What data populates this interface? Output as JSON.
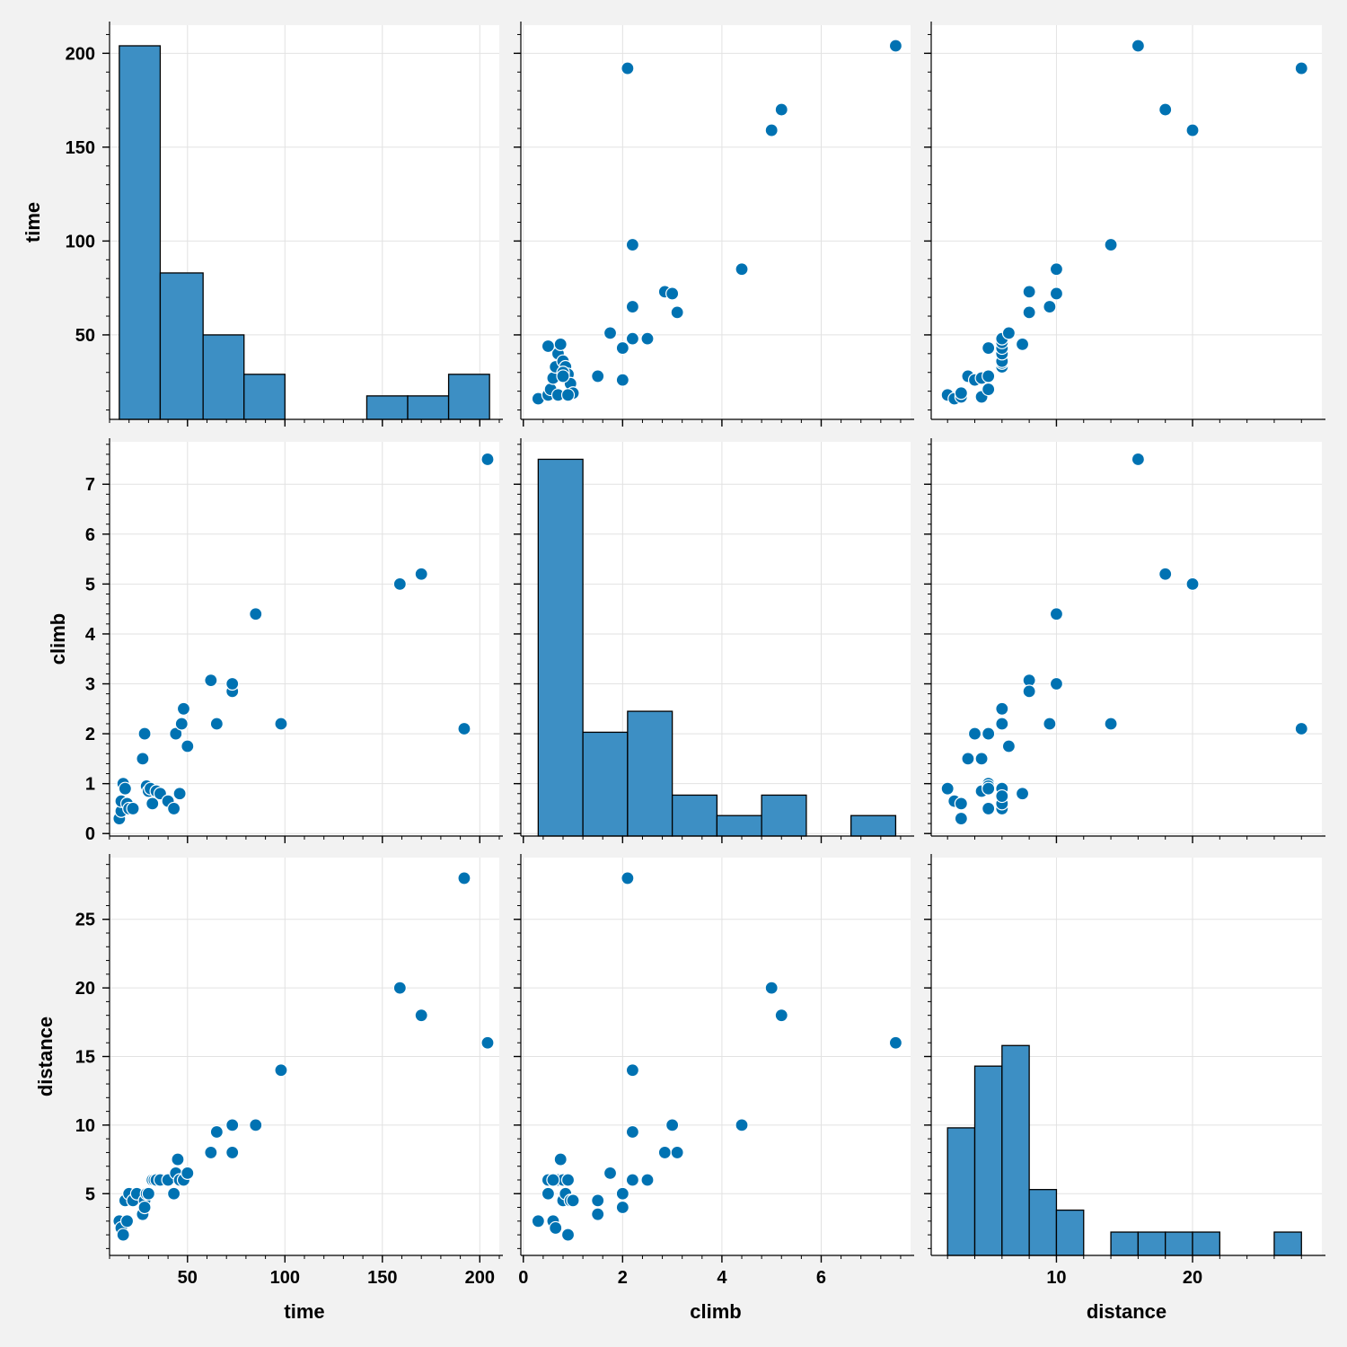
{
  "figure": {
    "type": "pairplot",
    "variables": [
      "time",
      "climb",
      "distance"
    ]
  },
  "colors": {
    "background": "#f2f2f2",
    "panel": "#ffffff",
    "grid": "#e2e2e2",
    "series": "#0072b2",
    "bar_fill": "#3d8fc4"
  },
  "chart_data": [
    {
      "type": "histogram",
      "row": "time",
      "col": "time",
      "xlabel": "",
      "ylabel": "time",
      "bins": [
        [
          15,
          36,
          204
        ],
        [
          36,
          58,
          83
        ],
        [
          58,
          79,
          50
        ],
        [
          79,
          100,
          29
        ],
        [
          100,
          121,
          0
        ],
        [
          121,
          142,
          0
        ],
        [
          142,
          163,
          17.5
        ],
        [
          163,
          184,
          17.5
        ],
        [
          184,
          205,
          29
        ]
      ],
      "xticks": [
        50,
        100,
        150,
        200
      ],
      "xlim": [
        10,
        210
      ],
      "yticks": [
        50,
        100,
        150,
        200
      ],
      "ytick_labels": [
        "50",
        "100",
        "150",
        "200"
      ],
      "ylim": [
        5,
        215
      ]
    },
    {
      "type": "scatter",
      "row": "time",
      "col": "climb",
      "xlabel": "",
      "ylabel": "",
      "x": [
        0.3,
        0.5,
        0.55,
        0.6,
        0.65,
        0.7,
        0.75,
        0.8,
        0.85,
        0.9,
        0.95,
        1.0,
        0.7,
        0.8,
        0.8,
        0.5,
        0.9,
        1.5,
        1.5,
        1.75,
        2.0,
        2.0,
        2.2,
        2.2,
        2.5,
        2.85,
        3.0,
        3.1,
        4.4,
        2.2,
        2.1,
        5.0,
        5.2,
        7.5
      ],
      "y": [
        16,
        18,
        21,
        27,
        33,
        40,
        45,
        36,
        33,
        29,
        24,
        19,
        18,
        30,
        28,
        44,
        18,
        28,
        28,
        51,
        43,
        26,
        48,
        65,
        48,
        73,
        72,
        62,
        85,
        98,
        192,
        159,
        170,
        204
      ],
      "xticks": [
        0,
        2,
        4,
        6
      ],
      "xlim": [
        -0.05,
        7.8
      ],
      "yticks": [
        50,
        100,
        150,
        200
      ],
      "ylim": [
        5,
        215
      ]
    },
    {
      "type": "scatter",
      "row": "time",
      "col": "distance",
      "xlabel": "",
      "ylabel": "",
      "x": [
        2,
        2.5,
        3,
        3,
        3.5,
        4,
        4.5,
        4.5,
        5,
        5,
        5,
        6,
        6,
        6,
        6,
        6,
        6,
        6,
        6.5,
        7.5,
        8,
        8,
        9.5,
        10,
        10,
        14,
        16,
        18,
        20,
        28
      ],
      "y": [
        18,
        16,
        17,
        19,
        28,
        26,
        27,
        17,
        28,
        21,
        43,
        33,
        35,
        36,
        40,
        43,
        46,
        48,
        51,
        45,
        62,
        73,
        65,
        72,
        85,
        98,
        204,
        170,
        159,
        192
      ],
      "xticks": [
        10,
        20
      ],
      "xlim": [
        0.8,
        29.5
      ],
      "yticks": [
        50,
        100,
        150,
        200
      ],
      "ylim": [
        5,
        215
      ]
    },
    {
      "type": "scatter",
      "row": "climb",
      "col": "time",
      "xlabel": "",
      "ylabel": "climb",
      "x": [
        15,
        16,
        16,
        17,
        18,
        19,
        20,
        22,
        27,
        28,
        29,
        30,
        31,
        32,
        34,
        36,
        40,
        43,
        44,
        46,
        47,
        48,
        50,
        62,
        65,
        73,
        73,
        85,
        98,
        159,
        170,
        192,
        204
      ],
      "y": [
        0.3,
        0.45,
        0.65,
        1.0,
        0.9,
        0.6,
        0.5,
        0.5,
        1.5,
        2.0,
        0.95,
        0.85,
        0.9,
        0.6,
        0.85,
        0.8,
        0.65,
        0.5,
        2.0,
        0.8,
        2.2,
        2.5,
        1.75,
        3.07,
        2.2,
        2.85,
        3.0,
        4.4,
        2.2,
        5.0,
        5.2,
        2.1,
        7.5
      ],
      "xticks": [
        50,
        100,
        150,
        200
      ],
      "xlim": [
        10,
        210
      ],
      "yticks": [
        0,
        1,
        2,
        3,
        4,
        5,
        6,
        7
      ],
      "ytick_labels": [
        "0",
        "1",
        "2",
        "3",
        "4",
        "5",
        "6",
        "7"
      ],
      "ylim": [
        -0.05,
        7.85
      ]
    },
    {
      "type": "histogram",
      "row": "climb",
      "col": "climb",
      "xlabel": "",
      "ylabel": "",
      "bins": [
        [
          0.3,
          1.2,
          7.5
        ],
        [
          1.2,
          2.1,
          2.03
        ],
        [
          2.1,
          3.0,
          2.45
        ],
        [
          3.0,
          3.9,
          0.77
        ],
        [
          3.9,
          4.8,
          0.36
        ],
        [
          4.8,
          5.7,
          0.77
        ],
        [
          5.7,
          6.6,
          0
        ],
        [
          6.6,
          7.5,
          0.36
        ]
      ],
      "xticks": [
        0,
        2,
        4,
        6
      ],
      "xlim": [
        -0.05,
        7.8
      ],
      "yticks": [
        0,
        1,
        2,
        3,
        4,
        5,
        6,
        7
      ],
      "ylim": [
        -0.05,
        7.85
      ]
    },
    {
      "type": "scatter",
      "row": "climb",
      "col": "distance",
      "xlabel": "",
      "ylabel": "",
      "x": [
        2,
        2.5,
        3,
        3,
        3.5,
        4,
        4.5,
        4.5,
        5,
        5,
        5,
        5,
        5,
        6,
        6,
        6,
        6,
        6,
        6,
        6.5,
        7.5,
        8,
        8,
        9.5,
        10,
        10,
        14,
        16,
        18,
        20,
        28
      ],
      "y": [
        0.9,
        0.65,
        0.6,
        0.3,
        1.5,
        2.0,
        1.5,
        0.85,
        1.0,
        2.0,
        0.5,
        0.95,
        0.9,
        2.5,
        2.2,
        0.9,
        0.5,
        0.6,
        0.75,
        1.75,
        0.8,
        3.07,
        2.85,
        2.2,
        3.0,
        4.4,
        2.2,
        7.5,
        5.2,
        5.0,
        2.1
      ],
      "xticks": [
        10,
        20
      ],
      "xlim": [
        0.8,
        29.5
      ],
      "yticks": [
        0,
        1,
        2,
        3,
        4,
        5,
        6,
        7
      ],
      "ylim": [
        -0.05,
        7.85
      ]
    },
    {
      "type": "scatter",
      "row": "distance",
      "col": "time",
      "xlabel": "time",
      "ylabel": "distance",
      "x": [
        15,
        16,
        17,
        18,
        19,
        20,
        22,
        24,
        27,
        28,
        28,
        29,
        30,
        32,
        33,
        34,
        36,
        40,
        43,
        44,
        45,
        46,
        48,
        50,
        62,
        65,
        73,
        73,
        85,
        98,
        159,
        170,
        192,
        204
      ],
      "y": [
        3,
        2.5,
        2,
        4.5,
        3,
        5,
        4.5,
        5,
        3.5,
        4.5,
        4,
        5,
        5,
        6,
        6,
        6,
        6,
        6,
        5,
        6.5,
        7.5,
        6,
        6,
        6.5,
        8,
        9.5,
        10,
        8,
        10,
        14,
        20,
        18,
        28,
        16
      ],
      "xticks": [
        50,
        100,
        150,
        200
      ],
      "xtick_labels": [
        "50",
        "100",
        "150",
        "200"
      ],
      "xlim": [
        10,
        210
      ],
      "yticks": [
        5,
        10,
        15,
        20,
        25
      ],
      "ytick_labels": [
        "5",
        "10",
        "15",
        "20",
        "25"
      ],
      "ylim": [
        0.5,
        29.5
      ]
    },
    {
      "type": "scatter",
      "row": "distance",
      "col": "climb",
      "xlabel": "climb",
      "ylabel": "",
      "x": [
        0.3,
        0.5,
        0.5,
        0.6,
        0.65,
        0.7,
        0.75,
        0.8,
        0.8,
        0.85,
        0.9,
        0.9,
        0.95,
        1.0,
        0.6,
        1.5,
        1.5,
        1.75,
        2.0,
        2.0,
        2.2,
        2.2,
        2.2,
        2.5,
        2.85,
        3.0,
        3.1,
        4.4,
        2.2,
        2.1,
        5.0,
        5.2,
        7.5
      ],
      "y": [
        3,
        5,
        6,
        3,
        2.5,
        6,
        7.5,
        4.5,
        6,
        5,
        2,
        6,
        4.5,
        4.5,
        6,
        4.5,
        3.5,
        6.5,
        5,
        4,
        6,
        9.5,
        14,
        6,
        8,
        10,
        8,
        10,
        6,
        28,
        20,
        18,
        16
      ],
      "xticks": [
        0,
        2,
        4,
        6
      ],
      "xtick_labels": [
        "0",
        "2",
        "4",
        "6"
      ],
      "xlim": [
        -0.05,
        7.8
      ],
      "yticks": [
        5,
        10,
        15,
        20,
        25
      ],
      "ylim": [
        0.5,
        29.5
      ]
    },
    {
      "type": "histogram",
      "row": "distance",
      "col": "distance",
      "xlabel": "distance",
      "ylabel": "",
      "bins": [
        [
          2,
          4,
          9.8
        ],
        [
          4,
          6,
          14.3
        ],
        [
          6,
          8,
          15.8
        ],
        [
          8,
          10,
          5.3
        ],
        [
          10,
          12,
          3.8
        ],
        [
          12,
          14,
          0
        ],
        [
          14,
          16,
          2.2
        ],
        [
          16,
          18,
          2.2
        ],
        [
          18,
          20,
          2.2
        ],
        [
          20,
          22,
          2.2
        ],
        [
          22,
          24,
          0
        ],
        [
          24,
          26,
          0
        ],
        [
          26,
          28,
          2.2
        ]
      ],
      "xticks": [
        10,
        20
      ],
      "xtick_labels": [
        "10",
        "20"
      ],
      "xlim": [
        0.8,
        29.5
      ],
      "yticks": [
        5,
        10,
        15,
        20,
        25
      ],
      "ylim": [
        0.5,
        29.5
      ]
    }
  ]
}
